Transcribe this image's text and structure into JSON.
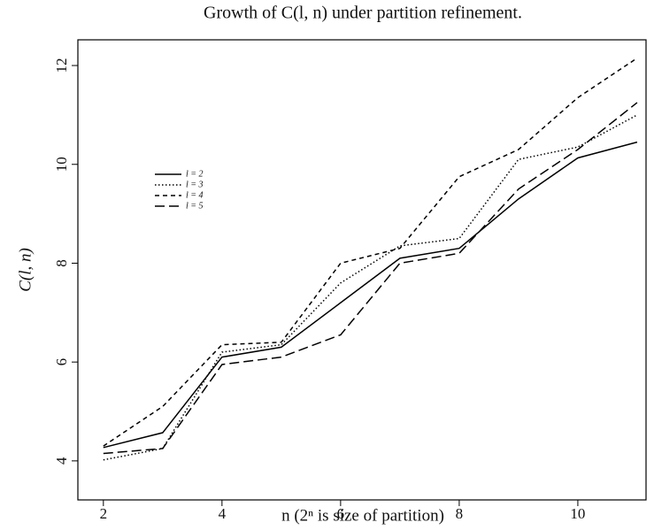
{
  "chart_data": {
    "type": "line",
    "title": "Growth of C(l, n) under partition refinement.",
    "xlabel": "n (2ⁿ is size of partition)",
    "ylabel": "C(l, n)",
    "x": [
      2,
      3,
      4,
      5,
      6,
      7,
      8,
      9,
      10,
      11
    ],
    "series": [
      {
        "name": "l = 2",
        "color": "#000000",
        "dash": "solid",
        "values": [
          4.27,
          4.57,
          6.1,
          6.3,
          7.2,
          8.1,
          8.3,
          9.3,
          10.13,
          10.45
        ]
      },
      {
        "name": "l = 3",
        "color": "#000000",
        "dash": "dotted",
        "values": [
          4.02,
          4.25,
          6.2,
          6.35,
          7.6,
          8.35,
          8.5,
          10.1,
          10.35,
          11.0
        ]
      },
      {
        "name": "l = 4",
        "color": "#000000",
        "dash": "short-dash",
        "values": [
          4.3,
          5.1,
          6.35,
          6.4,
          8.0,
          8.3,
          9.75,
          10.3,
          11.35,
          12.15
        ]
      },
      {
        "name": "l = 5",
        "color": "#000000",
        "dash": "long-dash",
        "values": [
          4.15,
          4.25,
          5.95,
          6.1,
          6.55,
          8.0,
          8.2,
          9.5,
          10.3,
          11.25
        ]
      }
    ],
    "xlim": [
      1.57,
      11.15
    ],
    "ylim": [
      3.21,
      12.52
    ],
    "xticks": [
      2,
      4,
      6,
      8,
      10
    ],
    "yticks": [
      4,
      6,
      8,
      10,
      12
    ]
  }
}
